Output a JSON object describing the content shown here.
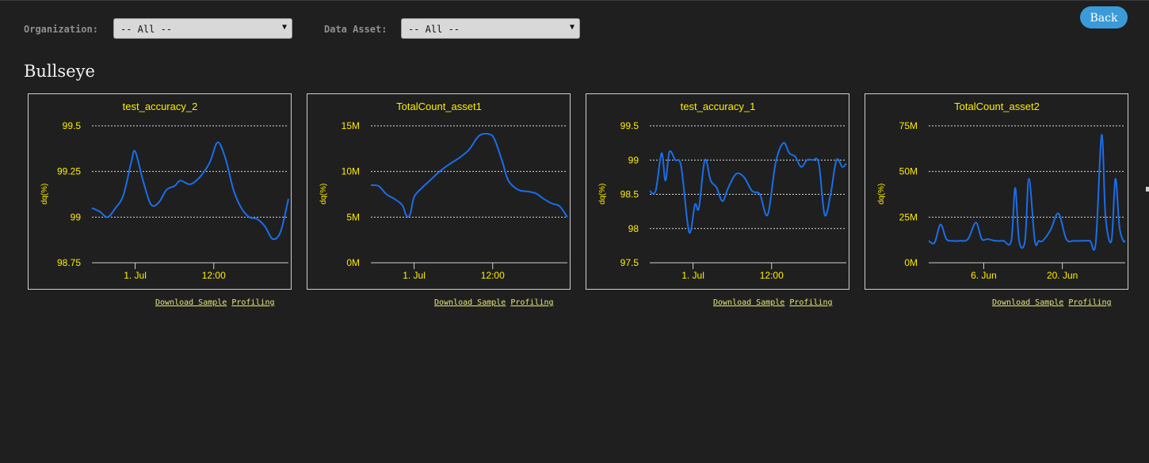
{
  "filters": {
    "organization": {
      "label": "Organization:",
      "value": "-- All --"
    },
    "data_asset": {
      "label": "Data Asset:",
      "value": "-- All --"
    }
  },
  "back_label": "Back",
  "section_title": "Bullseye",
  "links": {
    "download_sample": "Download  Sample",
    "profiling": "Profiling"
  },
  "colors": {
    "line": "#1a6ee8",
    "title": "#ffee00",
    "axis": "#ffee00",
    "background": "#1f1f1f"
  },
  "chart_data": [
    {
      "type": "line",
      "title": "test_accuracy_2",
      "ylabel": "dq(%)",
      "yticks": [
        "98.75",
        "99",
        "99.25",
        "99.5"
      ],
      "ylim": [
        98.75,
        99.5
      ],
      "xticks": [
        {
          "label": "1. Jul",
          "at": 0.22
        },
        {
          "label": "12:00",
          "at": 0.62
        }
      ],
      "x": [
        0,
        0.04,
        0.08,
        0.12,
        0.16,
        0.2,
        0.22,
        0.26,
        0.3,
        0.34,
        0.38,
        0.42,
        0.45,
        0.5,
        0.55,
        0.6,
        0.64,
        0.68,
        0.72,
        0.76,
        0.8,
        0.84,
        0.88,
        0.92,
        0.96,
        1
      ],
      "values": [
        99.05,
        99.03,
        99.0,
        99.05,
        99.12,
        99.3,
        99.36,
        99.2,
        99.07,
        99.08,
        99.15,
        99.17,
        99.2,
        99.18,
        99.22,
        99.3,
        99.41,
        99.32,
        99.15,
        99.05,
        99.0,
        98.99,
        98.95,
        98.88,
        98.92,
        99.1
      ]
    },
    {
      "type": "line",
      "title": "TotalCount_asset1",
      "ylabel": "dq(%)",
      "yticks": [
        "0M",
        "5M",
        "10M",
        "15M"
      ],
      "ylim": [
        0,
        15
      ],
      "xticks": [
        {
          "label": "1. Jul",
          "at": 0.22
        },
        {
          "label": "12:00",
          "at": 0.62
        }
      ],
      "x": [
        0,
        0.04,
        0.08,
        0.12,
        0.16,
        0.18,
        0.2,
        0.22,
        0.26,
        0.3,
        0.35,
        0.4,
        0.45,
        0.5,
        0.55,
        0.6,
        0.63,
        0.67,
        0.7,
        0.75,
        0.8,
        0.84,
        0.88,
        0.92,
        0.96,
        1
      ],
      "values": [
        8.5,
        8.4,
        7.5,
        7.0,
        6.3,
        5.2,
        5.3,
        7.2,
        8.2,
        9.0,
        10.0,
        10.8,
        11.5,
        12.4,
        13.9,
        14.1,
        13.5,
        11.0,
        9.0,
        8.0,
        7.8,
        7.6,
        7.0,
        6.5,
        6.2,
        5.0
      ]
    },
    {
      "type": "line",
      "title": "test_accuracy_1",
      "ylabel": "dq(%)",
      "yticks": [
        "97.5",
        "98",
        "98.5",
        "99",
        "99.5"
      ],
      "ylim": [
        97.5,
        99.5
      ],
      "xticks": [
        {
          "label": "1. Jul",
          "at": 0.22
        },
        {
          "label": "12:00",
          "at": 0.62
        }
      ],
      "x": [
        0,
        0.03,
        0.06,
        0.08,
        0.1,
        0.13,
        0.16,
        0.2,
        0.23,
        0.25,
        0.28,
        0.31,
        0.34,
        0.37,
        0.4,
        0.44,
        0.48,
        0.52,
        0.56,
        0.6,
        0.64,
        0.68,
        0.71,
        0.74,
        0.77,
        0.8,
        0.83,
        0.86,
        0.89,
        0.92,
        0.95,
        0.98,
        1
      ],
      "values": [
        98.55,
        98.55,
        99.1,
        98.7,
        99.12,
        99.0,
        98.9,
        97.95,
        98.35,
        98.3,
        99.0,
        98.7,
        98.6,
        98.4,
        98.6,
        98.8,
        98.75,
        98.55,
        98.5,
        98.2,
        98.95,
        99.25,
        99.1,
        99.05,
        98.9,
        99.0,
        99.0,
        98.95,
        98.2,
        98.5,
        99.0,
        98.9,
        98.95
      ]
    },
    {
      "type": "line",
      "title": "TotalCount_asset2",
      "ylabel": "dq(%)",
      "yticks": [
        "0M",
        "25M",
        "50M",
        "75M"
      ],
      "ylim": [
        0,
        75
      ],
      "xticks": [
        {
          "label": "6. Jun",
          "at": 0.28
        },
        {
          "label": "20. Jun",
          "at": 0.68
        }
      ],
      "x": [
        0,
        0.03,
        0.06,
        0.09,
        0.12,
        0.16,
        0.2,
        0.24,
        0.27,
        0.3,
        0.34,
        0.38,
        0.42,
        0.44,
        0.46,
        0.49,
        0.51,
        0.54,
        0.56,
        0.58,
        0.62,
        0.66,
        0.7,
        0.74,
        0.78,
        0.82,
        0.85,
        0.88,
        0.9,
        0.93,
        0.95,
        0.97,
        0.99,
        1
      ],
      "values": [
        12,
        11,
        21,
        13,
        12,
        12,
        13,
        22,
        13,
        13,
        12,
        12,
        12,
        41,
        12,
        12,
        46,
        12,
        12,
        12,
        18,
        27,
        13,
        12,
        12,
        12,
        11,
        70,
        25,
        12,
        46,
        20,
        12,
        12
      ]
    }
  ]
}
